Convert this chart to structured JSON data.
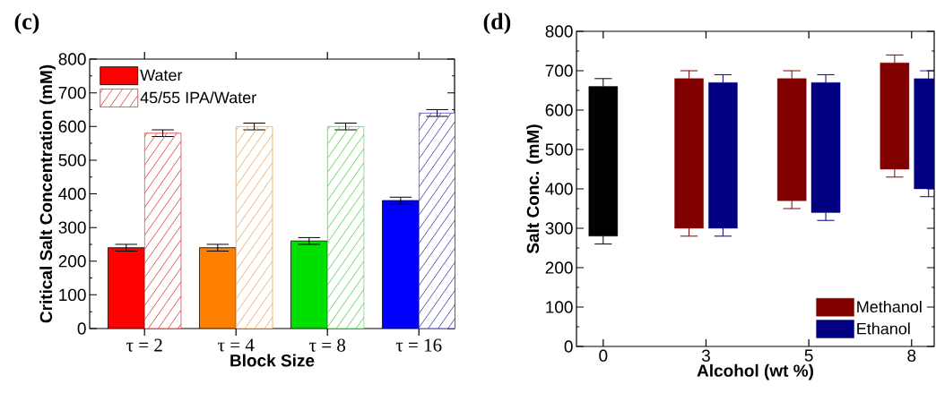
{
  "chart_data": [
    {
      "type": "bar",
      "title": "(c)",
      "xlabel": "Block Size",
      "ylabel": "Critical Salt Concentration (mM)",
      "categories": [
        "τ = 2",
        "τ = 4",
        "τ = 8",
        "τ = 16"
      ],
      "ylim": [
        0,
        800
      ],
      "yticks": [
        0,
        100,
        200,
        300,
        400,
        500,
        600,
        700,
        800
      ],
      "grid": false,
      "legend": "top left",
      "series": [
        {
          "name": "Water",
          "colors": [
            "#ff0000",
            "#ff8000",
            "#00e000",
            "#0000ff"
          ],
          "values": [
            240,
            240,
            260,
            380
          ],
          "errors": [
            10,
            10,
            10,
            10
          ]
        },
        {
          "name": "45/55 IPA/Water",
          "colors": [
            "#e03030",
            "#f0a050",
            "#40d040",
            "#3030b0"
          ],
          "values": [
            580,
            600,
            600,
            640
          ],
          "errors": [
            10,
            10,
            10,
            10
          ]
        }
      ]
    },
    {
      "type": "bar",
      "title": "(d)",
      "xlabel": "Alcohol (wt %)",
      "ylabel": "Salt Conc. (mM)",
      "categories": [
        "0",
        "3",
        "5",
        "8"
      ],
      "ylim": [
        0,
        800
      ],
      "yticks": [
        0,
        100,
        200,
        300,
        400,
        500,
        600,
        700,
        800
      ],
      "grid": false,
      "legend": "bottom right",
      "series": [
        {
          "color": "#000000",
          "base": [
            280,
            null,
            null,
            null
          ],
          "values": [
            380,
            null,
            null,
            null
          ],
          "errors": [
            [
              260,
              680
            ],
            null,
            null,
            null
          ]
        },
        {
          "name": "Methanol",
          "color": "#800000",
          "base": [
            null,
            300,
            370,
            450
          ],
          "values": [
            null,
            380,
            310,
            270
          ],
          "errors": [
            null,
            [
              280,
              700
            ],
            [
              350,
              700
            ],
            [
              430,
              740
            ]
          ]
        },
        {
          "name": "Ethanol",
          "color": "#000080",
          "base": [
            null,
            300,
            340,
            400
          ],
          "values": [
            null,
            370,
            330,
            280
          ],
          "errors": [
            null,
            [
              280,
              690
            ],
            [
              320,
              690
            ],
            [
              380,
              700
            ]
          ]
        }
      ]
    }
  ]
}
